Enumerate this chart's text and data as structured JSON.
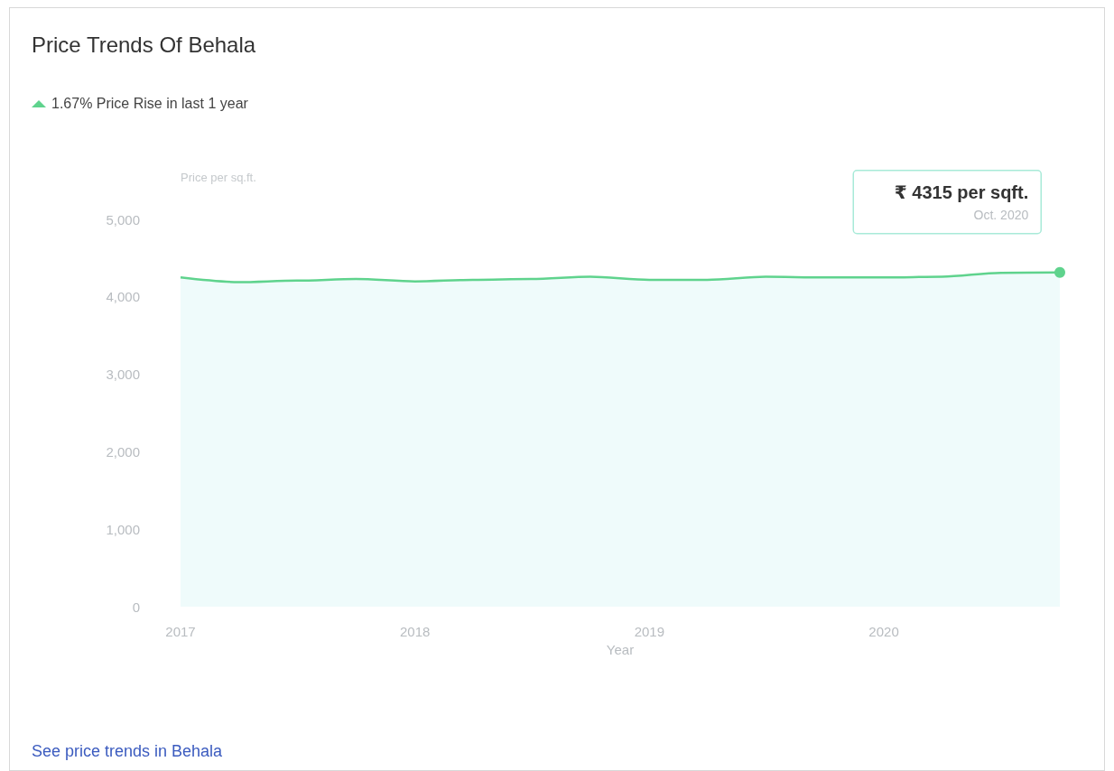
{
  "chart_data": {
    "type": "area",
    "title": "Price Trends Of Behala",
    "subtitle": "1.67% Price Rise in last 1 year",
    "xlabel": "Year",
    "ylabel": "Price per sq.ft.",
    "x": [
      "2017-01",
      "2017-04",
      "2017-07",
      "2017-10",
      "2018-01",
      "2018-04",
      "2018-07",
      "2018-10",
      "2019-01",
      "2019-04",
      "2019-07",
      "2019-10",
      "2020-01",
      "2020-04",
      "2020-07",
      "2020-10"
    ],
    "series": [
      {
        "color": "#5fd38d",
        "values": [
          4250,
          4190,
          4210,
          4230,
          4200,
          4220,
          4230,
          4260,
          4220,
          4220,
          4260,
          4250,
          4250,
          4260,
          4310,
          4315
        ]
      }
    ],
    "xlim": [
      "2017-01",
      "2020-10"
    ],
    "xticks": [
      "2017",
      "2018",
      "2019",
      "2020"
    ],
    "ylim": [
      0,
      5000
    ],
    "yticks": [
      0,
      {
        "value": 1000,
        "label": "1,000"
      },
      {
        "value": 2000,
        "label": "2,000"
      },
      {
        "value": 3000,
        "label": "3,000"
      },
      {
        "value": 4000,
        "label": "4,000"
      },
      {
        "value": 5000,
        "label": "5,000"
      }
    ],
    "grid": false,
    "marker": "none",
    "annotations": [
      "₹ 4315 per sqft.",
      "Oct. 2020",
      "See price trends in Behala"
    ]
  }
}
